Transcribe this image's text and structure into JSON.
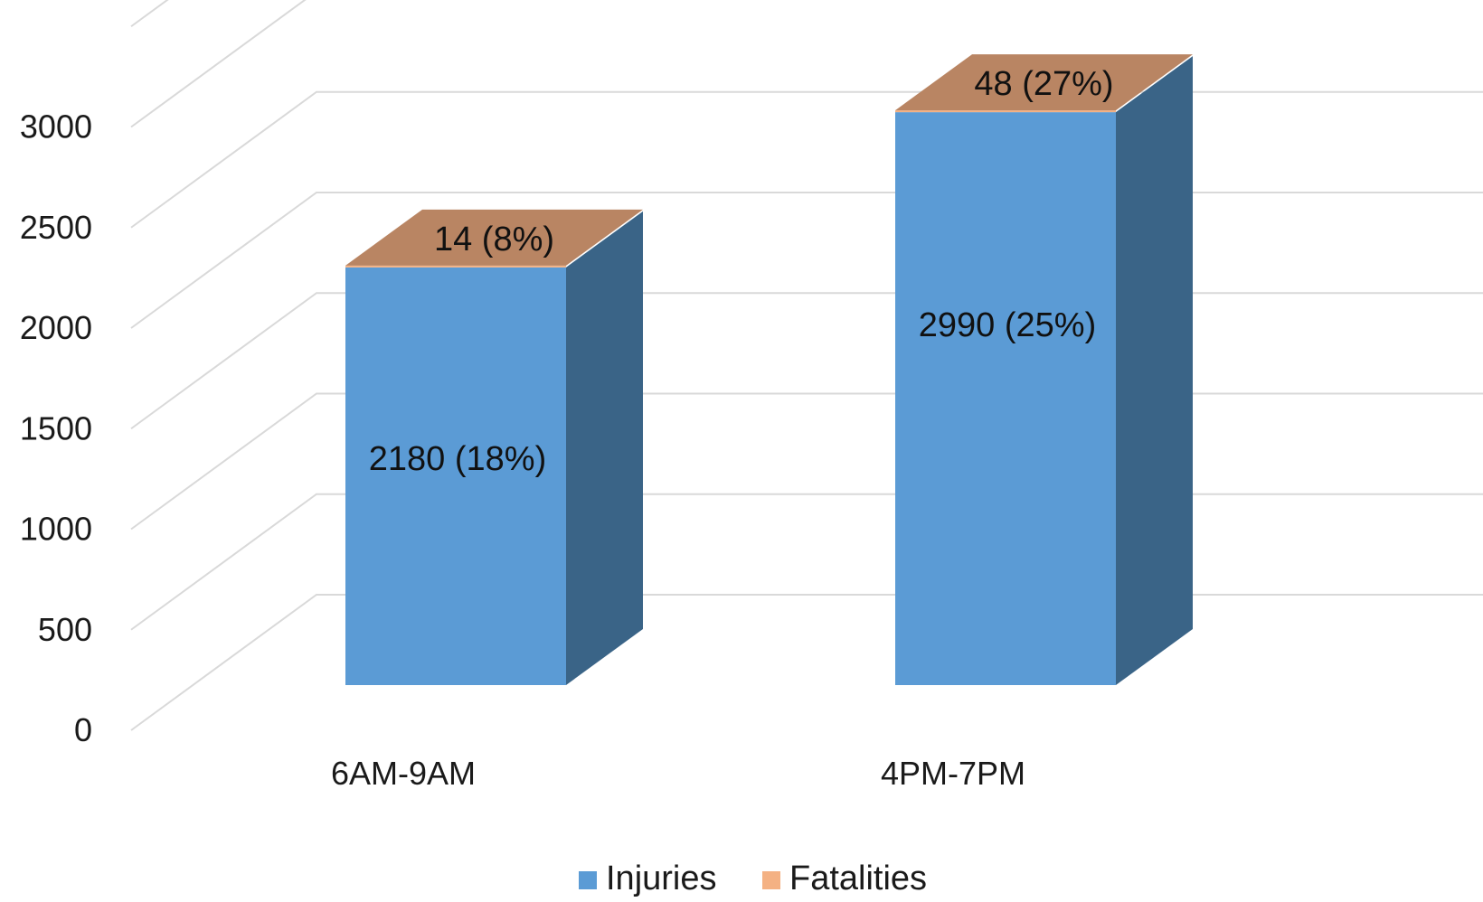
{
  "chart_data": {
    "type": "bar",
    "stacked": true,
    "three_d": true,
    "categories": [
      "6AM-9AM",
      "4PM-7PM"
    ],
    "series": [
      {
        "name": "Injuries",
        "values": [
          2180,
          2990
        ],
        "labels": [
          "2180 (18%)",
          "2990 (25%)"
        ],
        "color": "#5B9BD5",
        "side_color": "#3A6487"
      },
      {
        "name": "Fatalities",
        "values": [
          14,
          48
        ],
        "labels": [
          "14 (8%)",
          "48 (27%)"
        ],
        "color": "#F4B183",
        "top_color": "#B98563"
      }
    ],
    "yticks": [
      "0",
      "500",
      "1000",
      "1500",
      "2000",
      "2500",
      "3000"
    ],
    "ylim": [
      0,
      3500
    ],
    "grid": true,
    "legend_position": "bottom",
    "gridline_color": "#D9D9D9"
  }
}
